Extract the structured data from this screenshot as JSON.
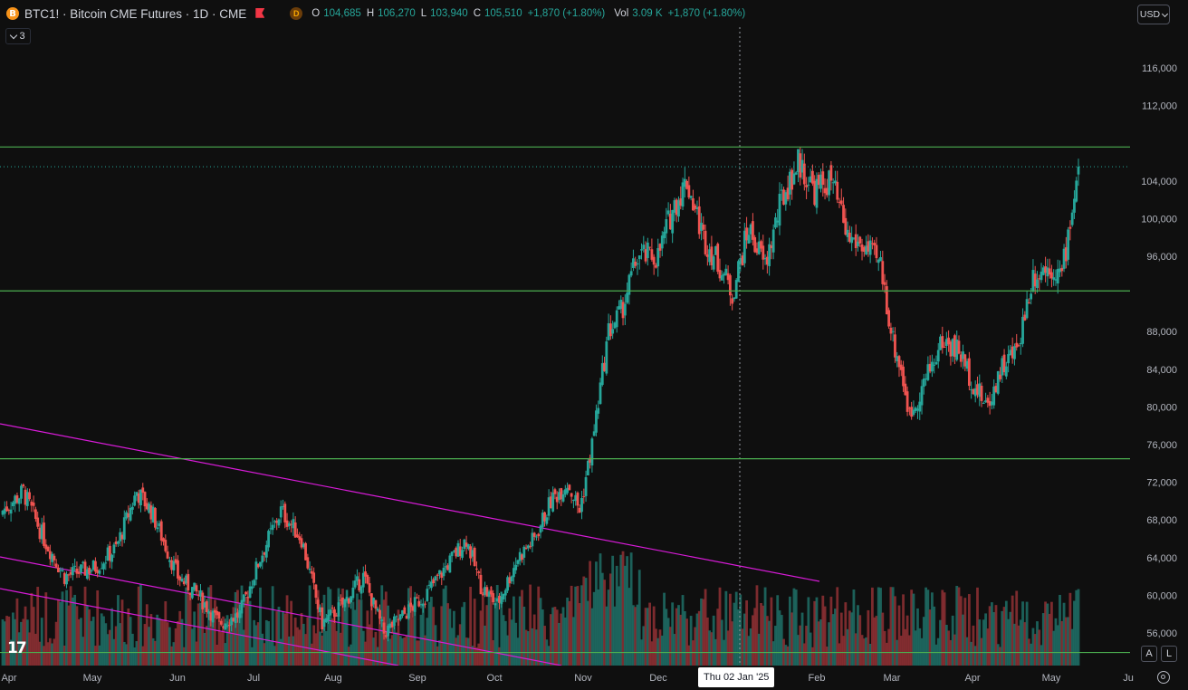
{
  "header": {
    "symbol_icon": "B",
    "title": "BTC1! · Bitcoin CME Futures · 1D · CME",
    "delay_badge": "D",
    "ohlc": [
      {
        "label": "O",
        "value": "104,685"
      },
      {
        "label": "H",
        "value": "106,270"
      },
      {
        "label": "L",
        "value": "103,940"
      },
      {
        "label": "C",
        "value": "105,510"
      }
    ],
    "change": "+1,870 (+1.80%)",
    "vol_label": "Vol",
    "vol_value": "3.09 K",
    "vol_change": "+1,870 (+1.80%)"
  },
  "indicator_toggle": {
    "count": "3"
  },
  "currency": "USD",
  "price_axis": {
    "ticks": [
      "116,000",
      "112,000",
      "104,000",
      "100,000",
      "96,000",
      "88,000",
      "84,000",
      "80,000",
      "76,000",
      "72,000",
      "68,000",
      "64,000",
      "60,000",
      "56,000"
    ],
    "current_price": "105,510",
    "levels": [
      "107,605",
      "92,325",
      "74,495",
      "53,925"
    ]
  },
  "time_axis": {
    "labels": [
      "Apr",
      "May",
      "Jun",
      "Jul",
      "Aug",
      "Sep",
      "Oct",
      "Nov",
      "Dec",
      "Feb",
      "Mar",
      "Apr",
      "May",
      "Ju"
    ],
    "crosshair_label": "Thu 02 Jan '25"
  },
  "scale_buttons": {
    "auto": "A",
    "log": "L"
  },
  "logo": "17",
  "colors": {
    "up": "#26a69a",
    "down": "#ef5350",
    "levels": "#4caf50",
    "trendlines": "#d81bd8",
    "crosshair": "#9598a1"
  },
  "chart_data": {
    "type": "candlestick",
    "title": "BTC1! · Bitcoin CME Futures · 1D · CME",
    "ylim": [
      52000,
      118000
    ],
    "horizontal_levels": [
      107605,
      92325,
      74495,
      53925
    ],
    "anchors": [
      [
        0,
        69000
      ],
      [
        10,
        71000
      ],
      [
        20,
        66000
      ],
      [
        30,
        62000
      ],
      [
        45,
        63000
      ],
      [
        55,
        65000
      ],
      [
        65,
        71000
      ],
      [
        72,
        69000
      ],
      [
        85,
        62000
      ],
      [
        95,
        60000
      ],
      [
        105,
        57000
      ],
      [
        115,
        58000
      ],
      [
        125,
        64000
      ],
      [
        135,
        69000
      ],
      [
        145,
        66000
      ],
      [
        155,
        57000
      ],
      [
        165,
        59000
      ],
      [
        175,
        62000
      ],
      [
        185,
        56000
      ],
      [
        195,
        58000
      ],
      [
        205,
        60000
      ],
      [
        215,
        63000
      ],
      [
        225,
        66000
      ],
      [
        232,
        61000
      ],
      [
        240,
        59000
      ],
      [
        250,
        64000
      ],
      [
        258,
        66000
      ],
      [
        266,
        70000
      ],
      [
        274,
        72000
      ],
      [
        280,
        69000
      ],
      [
        286,
        76000
      ],
      [
        294,
        88000
      ],
      [
        300,
        90000
      ],
      [
        308,
        96000
      ],
      [
        318,
        96000
      ],
      [
        325,
        101000
      ],
      [
        332,
        104000
      ],
      [
        340,
        98000
      ],
      [
        348,
        95000
      ],
      [
        354,
        92000
      ],
      [
        362,
        99000
      ],
      [
        370,
        95000
      ],
      [
        378,
        102000
      ],
      [
        386,
        106000
      ],
      [
        394,
        103000
      ],
      [
        402,
        104000
      ],
      [
        410,
        98000
      ],
      [
        418,
        97000
      ],
      [
        426,
        95000
      ],
      [
        432,
        87000
      ],
      [
        436,
        84000
      ],
      [
        440,
        79000
      ],
      [
        448,
        83000
      ],
      [
        456,
        87000
      ],
      [
        464,
        86000
      ],
      [
        472,
        82000
      ],
      [
        478,
        80000
      ],
      [
        484,
        84000
      ],
      [
        492,
        86000
      ],
      [
        500,
        94000
      ],
      [
        508,
        95000
      ],
      [
        514,
        94000
      ],
      [
        522,
        105510
      ]
    ]
  }
}
